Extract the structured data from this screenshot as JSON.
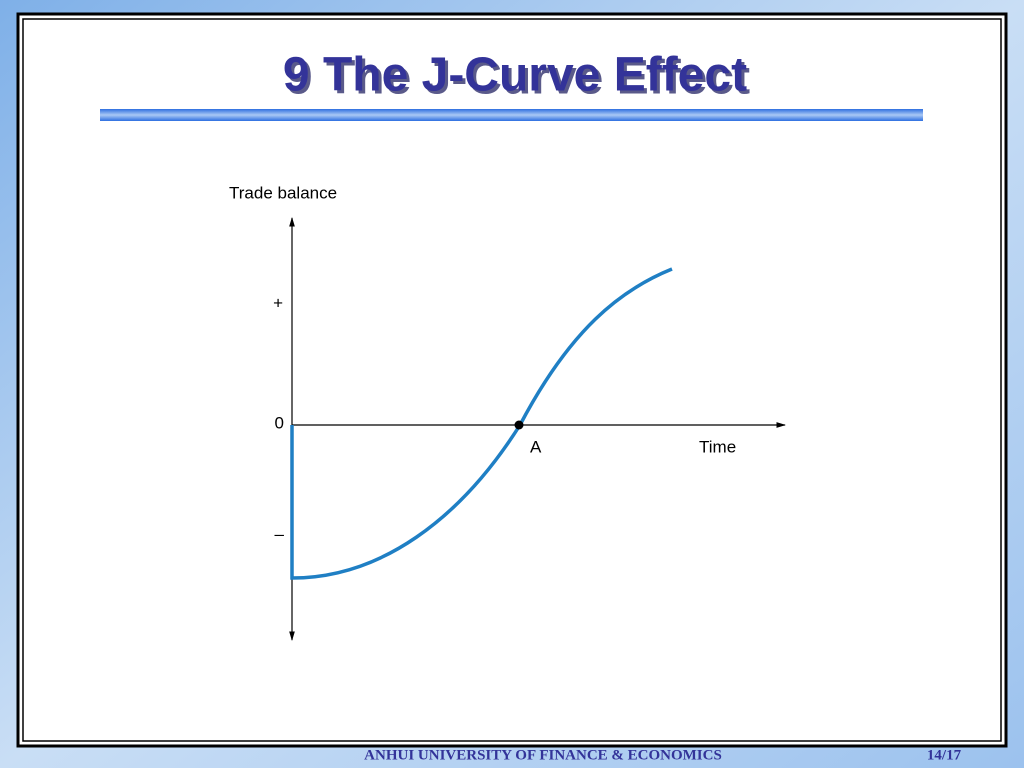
{
  "title": "9 The J-Curve Effect",
  "diagram": {
    "y_axis_label": "Trade balance",
    "x_axis_label": "Time",
    "y_labels": [
      "+",
      "0",
      "–"
    ],
    "point_label": "A"
  },
  "footer": {
    "institution": "ANHUI UNIVERSITY OF FINANCE & ECONOMICS",
    "page": "14/17"
  }
}
